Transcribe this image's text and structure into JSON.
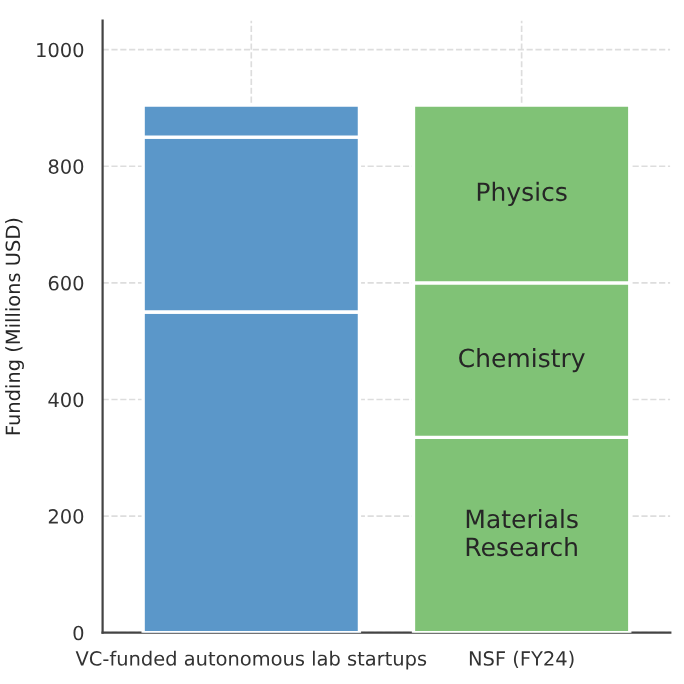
{
  "chart_data": {
    "type": "bar",
    "stacked": true,
    "ylabel": "Funding (Millions USD)",
    "categories": [
      "VC-funded autonomous lab startups",
      "NSF (FY24)"
    ],
    "series": [
      {
        "colors": [
          "#5b97c9",
          "#80c276"
        ],
        "values": [
          550,
          335
        ],
        "value_labels": [
          null,
          "Materials\nResearch"
        ]
      },
      {
        "colors": [
          "#5b97c9",
          "#80c276"
        ],
        "values": [
          300,
          265
        ],
        "value_labels": [
          null,
          "Chemistry"
        ]
      },
      {
        "colors": [
          "#5b97c9",
          "#80c276"
        ],
        "values": [
          55,
          305
        ],
        "value_labels": [
          null,
          "Physics"
        ]
      }
    ],
    "ylim": [
      0,
      1050
    ],
    "yticks": [
      0,
      200,
      400,
      600,
      800,
      1000
    ],
    "grid": true
  }
}
